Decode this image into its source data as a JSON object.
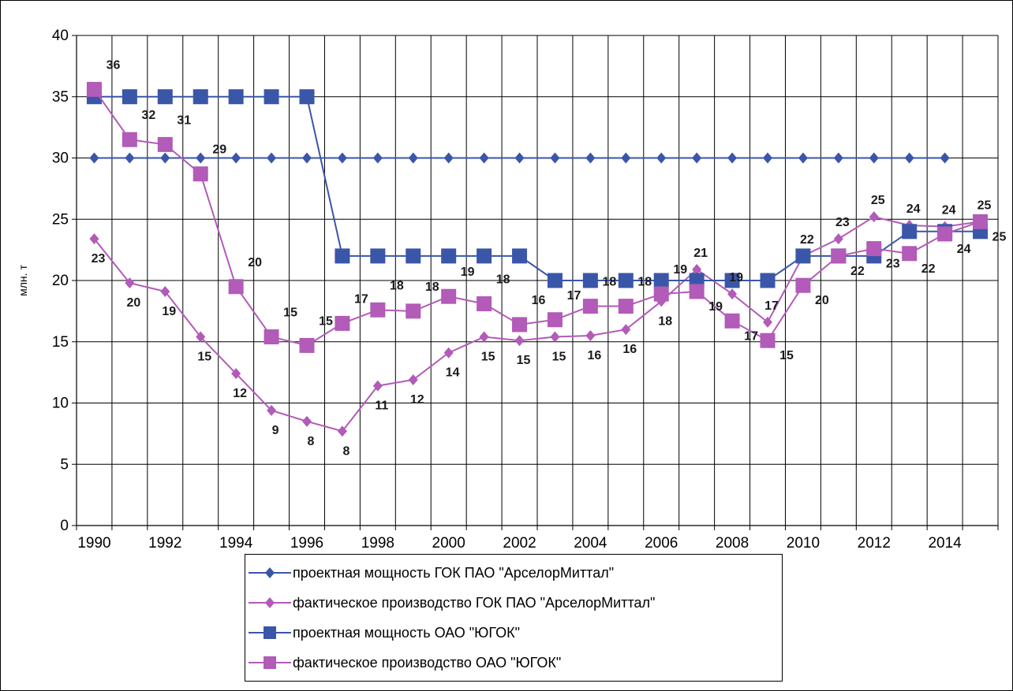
{
  "chart_data": {
    "type": "line",
    "ylabel": "млн. т",
    "ylim": [
      0,
      40
    ],
    "yticks": [
      0,
      5,
      10,
      15,
      20,
      25,
      30,
      35,
      40
    ],
    "x": [
      1990,
      1991,
      1992,
      1993,
      1994,
      1995,
      1996,
      1997,
      1998,
      1999,
      2000,
      2001,
      2002,
      2003,
      2004,
      2005,
      2006,
      2007,
      2008,
      2009,
      2010,
      2011,
      2012,
      2013,
      2014,
      2015
    ],
    "xticks": [
      "1990",
      "1992",
      "1994",
      "1996",
      "1998",
      "2000",
      "2002",
      "2004",
      "2006",
      "2008",
      "2010",
      "2012",
      "2014"
    ],
    "grid": true,
    "legend_position": "bottom",
    "series": [
      {
        "name": "проектная мощность ГОК ПАО \"АрселорМиттал\"",
        "marker": "diamond",
        "color": "#3a56a8",
        "values": [
          30,
          30,
          30,
          30,
          30,
          30,
          30,
          30,
          30,
          30,
          30,
          30,
          30,
          30,
          30,
          30,
          30,
          30,
          30,
          30,
          30,
          30,
          30,
          30,
          30,
          null
        ],
        "labels": []
      },
      {
        "name": "фактическое производство ГОК ПАО \"АрселорМиттал\"",
        "marker": "diamond",
        "color": "#b25bb8",
        "values": [
          23.4,
          19.8,
          19.1,
          15.4,
          12.4,
          9.4,
          8.5,
          7.7,
          11.4,
          11.9,
          14.1,
          15.4,
          15.1,
          15.4,
          15.5,
          16.0,
          18.3,
          20.9,
          18.9,
          16.6,
          22.0,
          23.4,
          25.2,
          24.5,
          24.4,
          24.8
        ],
        "labels": [
          "23",
          "20",
          "19",
          "15",
          "12",
          "9",
          "8",
          "8",
          "11",
          "12",
          "14",
          "15",
          "15",
          "15",
          "16",
          "16",
          "18",
          "21",
          "19",
          "17",
          "22",
          "23",
          "25",
          "24",
          "24",
          "25"
        ]
      },
      {
        "name": "проектная мощность ОАО \"ЮГОК\"",
        "marker": "square",
        "color": "#3a56a8",
        "values": [
          35,
          35,
          35,
          35,
          35,
          35,
          35,
          22,
          22,
          22,
          22,
          22,
          22,
          20,
          20,
          20,
          20,
          20,
          20,
          20,
          22,
          22,
          22,
          24,
          24,
          24
        ],
        "labels": []
      },
      {
        "name": "фактическое производство ОАО \"ЮГОК\"",
        "marker": "square",
        "color": "#b25bb8",
        "values": [
          35.6,
          31.5,
          31.1,
          28.7,
          19.5,
          15.4,
          14.7,
          16.5,
          17.6,
          17.5,
          18.7,
          18.1,
          16.4,
          16.8,
          17.9,
          17.9,
          18.9,
          19.1,
          16.7,
          15.1,
          19.6,
          22.0,
          22.6,
          22.2,
          23.8,
          24.8
        ],
        "labels": [
          "36",
          "32",
          "31",
          "29",
          "20",
          "15",
          "15",
          "17",
          "18",
          "18",
          "19",
          "18",
          "16",
          "17",
          "18",
          "18",
          "19",
          "19",
          "17",
          "15",
          "20",
          "22",
          "23",
          "22",
          "24",
          "25"
        ]
      }
    ]
  }
}
